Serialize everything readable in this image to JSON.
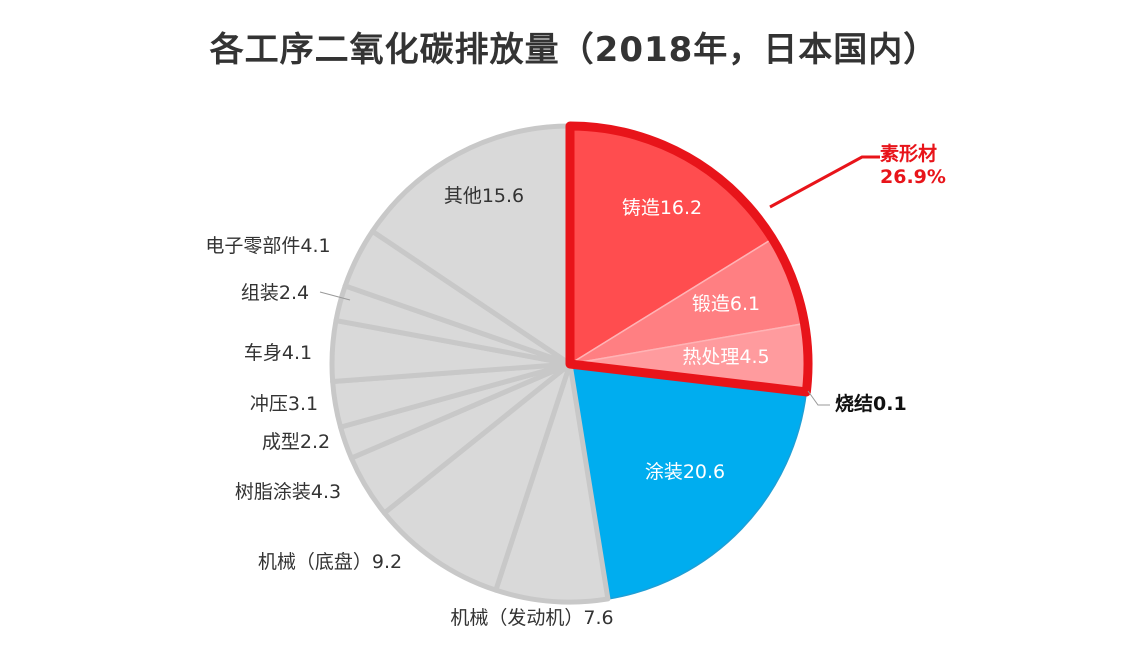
{
  "title": "各工序二氧化碳排放量（2018年，日本国内）",
  "colors": {
    "gray": "#d9d9d9",
    "gray_border": "#c8c8c8",
    "casting": "#ff4d4f",
    "forging": "#ff7f82",
    "heat": "#ff9b9e",
    "paint": "#00adef",
    "highlight": "#e8141a",
    "label_dark": "#333333",
    "label_light": "#ffffff",
    "callout": "#e8141a"
  },
  "group_callout": {
    "name": "素形材",
    "value": "26.9%"
  },
  "chart_data": {
    "type": "pie",
    "slices": [
      {
        "label": "铸造",
        "value": 16.2,
        "text": "铸造16.2",
        "color": "casting"
      },
      {
        "label": "锻造",
        "value": 6.1,
        "text": "锻造6.1",
        "color": "forging"
      },
      {
        "label": "热处理",
        "value": 4.5,
        "text": "热处理4.5",
        "color": "heat"
      },
      {
        "label": "烧结",
        "value": 0.1,
        "text": "烧结0.1",
        "color": "heat"
      },
      {
        "label": "涂装",
        "value": 20.6,
        "text": "涂装20.6",
        "color": "paint"
      },
      {
        "label": "机械（发动机）",
        "value": 7.6,
        "text": "机械（发动机）7.6",
        "color": "gray"
      },
      {
        "label": "机械（底盘）",
        "value": 9.2,
        "text": "机械（底盘）9.2",
        "color": "gray"
      },
      {
        "label": "树脂涂装",
        "value": 4.3,
        "text": "树脂涂装4.3",
        "color": "gray"
      },
      {
        "label": "成型",
        "value": 2.2,
        "text": "成型2.2",
        "color": "gray"
      },
      {
        "label": "冲压",
        "value": 3.1,
        "text": "冲压3.1",
        "color": "gray"
      },
      {
        "label": "车身",
        "value": 4.1,
        "text": "车身4.1",
        "color": "gray"
      },
      {
        "label": "组装",
        "value": 2.4,
        "text": "组装2.4",
        "color": "gray"
      },
      {
        "label": "电子零部件",
        "value": 4.1,
        "text": "电子零部件4.1",
        "color": "gray"
      },
      {
        "label": "其他",
        "value": 15.6,
        "text": "其他15.6",
        "color": "gray"
      }
    ],
    "group": {
      "name": "素形材",
      "total": 26.9,
      "members": [
        "铸造",
        "锻造",
        "热处理",
        "烧结"
      ]
    }
  }
}
